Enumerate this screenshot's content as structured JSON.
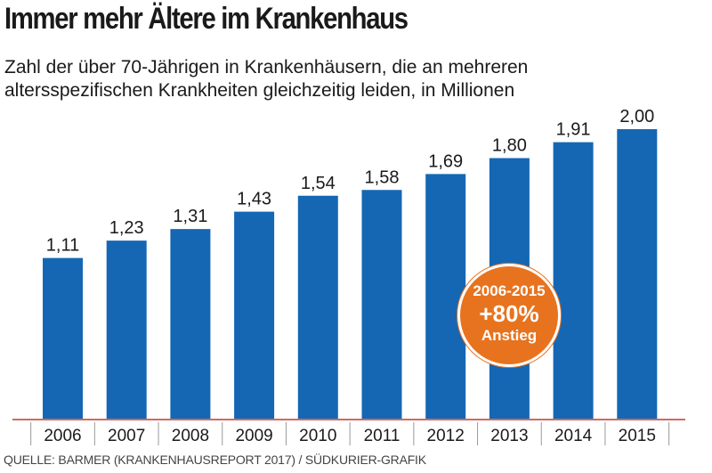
{
  "title": "Immer mehr Ältere im Krankenhaus",
  "subtitle_line1": "Zahl der über 70-Jährigen in Krankenhäusern, die an mehreren",
  "subtitle_line2": "altersspezifischen Krankheiten gleichzeitig leiden, in Millionen",
  "source": "QUELLE: BARMER (KRANKENHAUSREPORT 2017) / SÜDKURIER-GRAFIK",
  "badge": {
    "line1": "2006-2015",
    "line2": "+80%",
    "line3": "Anstieg"
  },
  "colors": {
    "bar": "#1567b4",
    "axis": "#c0392b",
    "badge": "#e8731f"
  },
  "chart_data": {
    "type": "bar",
    "categories": [
      "2006",
      "2007",
      "2008",
      "2009",
      "2010",
      "2011",
      "2012",
      "2013",
      "2014",
      "2015"
    ],
    "values": [
      1.11,
      1.23,
      1.31,
      1.43,
      1.54,
      1.58,
      1.69,
      1.8,
      1.91,
      2.0
    ],
    "value_labels": [
      "1,11",
      "1,23",
      "1,31",
      "1,43",
      "1,54",
      "1,58",
      "1,69",
      "1,80",
      "1,91",
      "2,00"
    ],
    "title": "Immer mehr Ältere im Krankenhaus",
    "xlabel": "",
    "ylabel": "",
    "ylim": [
      0,
      2.0
    ],
    "grid": false
  }
}
